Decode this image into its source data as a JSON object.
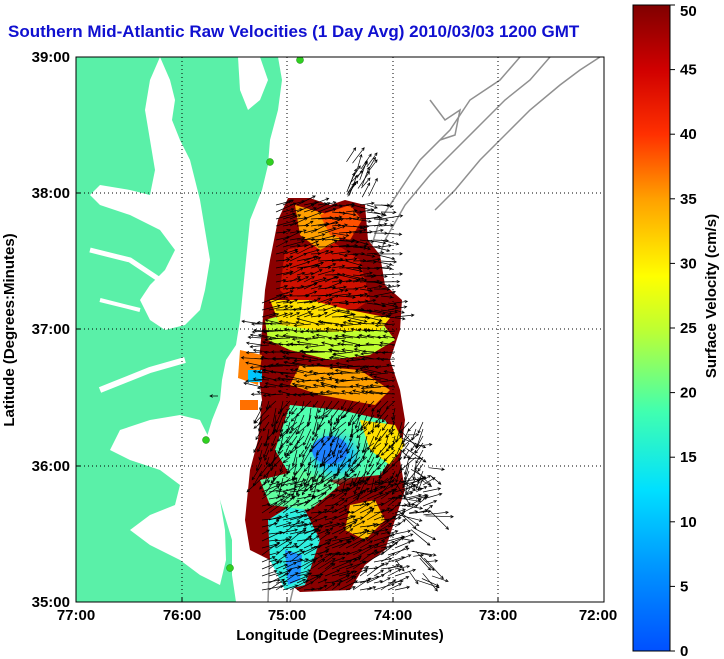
{
  "title": "Southern Mid-Atlantic Raw Velocities (1 Day Avg) 2010/03/03 1200 GMT",
  "x_axis": {
    "label": "Longitude (Degrees:Minutes)",
    "ticks": [
      "77:00",
      "76:00",
      "75:00",
      "74:00",
      "73:00",
      "72:00"
    ]
  },
  "y_axis": {
    "label": "Latitude (Degrees:Minutes)",
    "ticks": [
      "39:00",
      "38:00",
      "37:00",
      "36:00",
      "35:00"
    ]
  },
  "colorbar": {
    "label": "Surface Velocity (cm/s)",
    "ticks": [
      "50",
      "45",
      "40",
      "35",
      "30",
      "25",
      "20",
      "15",
      "10",
      "5",
      "0"
    ],
    "range": [
      0,
      50
    ],
    "colormap": "jet"
  },
  "colors": {
    "land": "#5af0a8",
    "title": "#1010d0",
    "bathymetry_contour": "#909090",
    "grid": "#000000",
    "station_marker": "#30d020"
  },
  "map_extent": {
    "lon": [
      -77,
      -72
    ],
    "lat": [
      35,
      39
    ]
  },
  "grid_lines": "dotted",
  "vector_color": "#000000"
}
